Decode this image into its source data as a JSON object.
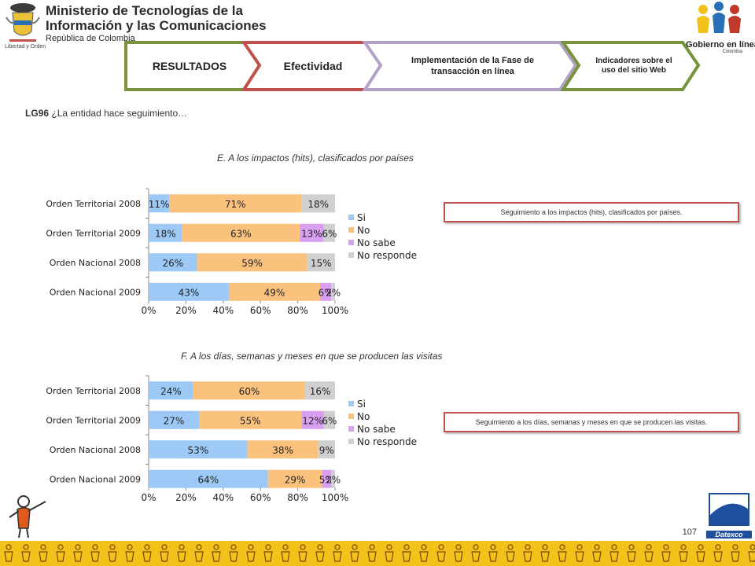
{
  "header": {
    "ministry_line1": "Ministerio de Tecnologías de la",
    "ministry_line2": "Información y las Comunicaciones",
    "ministry_line3": "República de Colombia",
    "motto": "Libertad y Orden",
    "gov_logo_line1": "Gobierno en línea",
    "gov_logo_line2": "Colombia"
  },
  "nav": [
    {
      "label": "RESULTADOS",
      "color": "#77933c"
    },
    {
      "label": "Efectividad",
      "color": "#c0504d"
    },
    {
      "label": "Implementación de la Fase de transacción en línea",
      "color": "#b3a2c7"
    },
    {
      "label": "Indicadores sobre el uso del sitio Web",
      "color": "#77933c"
    }
  ],
  "question": {
    "code": "LG96",
    "text": "¿La entidad hace seguimiento…"
  },
  "chart_data": [
    {
      "type": "bar",
      "orientation": "horizontal-stacked-100",
      "title": "E.  A los impactos (hits), clasificados por países",
      "categories": [
        "Orden Territorial 2008",
        "Orden Territorial 2009",
        "Orden Nacional 2008",
        "Orden Nacional 2009"
      ],
      "series": [
        {
          "name": "Si",
          "values": [
            11,
            18,
            26,
            43
          ],
          "labels": [
            "11%",
            "18%",
            "26%",
            "43%"
          ]
        },
        {
          "name": "No",
          "values": [
            71,
            63,
            59,
            49
          ],
          "labels": [
            "71%",
            "63%",
            "59%",
            "49%"
          ]
        },
        {
          "name": "No sabe",
          "values": [
            0,
            13,
            0,
            6
          ],
          "labels": [
            "",
            "13%",
            "",
            "6%"
          ]
        },
        {
          "name": "No responde",
          "values": [
            18,
            6,
            15,
            2
          ],
          "labels": [
            "18%",
            "6%",
            "15%",
            "2%"
          ]
        }
      ],
      "xlim": [
        0,
        100
      ],
      "xticks": [
        "0%",
        "20%",
        "40%",
        "60%",
        "80%",
        "100%"
      ],
      "legend": "right",
      "note": "Seguimiento a los impactos (hits), clasificados por países."
    },
    {
      "type": "bar",
      "orientation": "horizontal-stacked-100",
      "title": "F.  A los días, semanas y meses en que se producen  las visitas",
      "categories": [
        "Orden Territorial 2008",
        "Orden Territorial 2009",
        "Orden Nacional 2008",
        "Orden Nacional 2009"
      ],
      "series": [
        {
          "name": "Si",
          "values": [
            24,
            27,
            53,
            64
          ],
          "labels": [
            "24%",
            "27%",
            "53%",
            "64%"
          ]
        },
        {
          "name": "No",
          "values": [
            60,
            55,
            38,
            29
          ],
          "labels": [
            "60%",
            "55%",
            "38%",
            "29%"
          ]
        },
        {
          "name": "No sabe",
          "values": [
            0,
            12,
            0,
            5
          ],
          "labels": [
            "",
            "12%",
            "",
            "5%"
          ]
        },
        {
          "name": "No responde",
          "values": [
            16,
            6,
            9,
            2
          ],
          "labels": [
            "16%",
            "6%",
            "9%",
            "2%"
          ]
        }
      ],
      "xlim": [
        0,
        100
      ],
      "xticks": [
        "0%",
        "20%",
        "40%",
        "60%",
        "80%",
        "100%"
      ],
      "legend": "right",
      "note": "Seguimiento a los días, semanas y meses en que se producen las visitas."
    }
  ],
  "series_colors": {
    "Si": "#9cc9f5",
    "No": "#fbc27d",
    "No sabe": "#d9a0f2",
    "No responde": "#d0d0d0"
  },
  "footer": {
    "page_number": "107",
    "datexco_logo": "Datexco"
  }
}
